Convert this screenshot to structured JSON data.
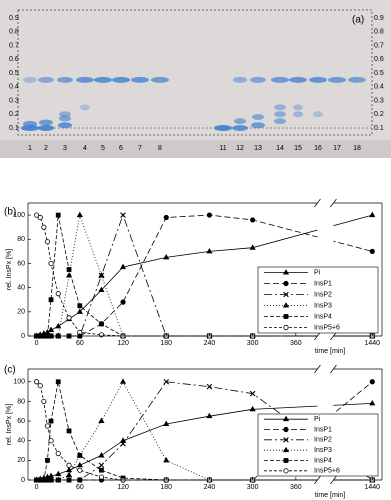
{
  "panel_a": {
    "label": "(a)",
    "rf_ticks": [
      "0.9",
      "0.8",
      "0.7",
      "0.6",
      "0.5",
      "0.4",
      "0.3",
      "0.2",
      "0.1"
    ],
    "lanes": [
      "1",
      "2",
      "3",
      "4",
      "5",
      "6",
      "7",
      "8",
      "11",
      "12",
      "13",
      "14",
      "15",
      "16",
      "17",
      "18"
    ]
  },
  "chart_data": [
    {
      "type": "line",
      "label": "(b)",
      "xlabel": "time [min]",
      "ylabel": "rel. InsPx [%]",
      "x": [
        0,
        5,
        10,
        15,
        20,
        30,
        45,
        60,
        90,
        120,
        180,
        240,
        300,
        1440
      ],
      "xlim": [
        -12,
        1450
      ],
      "xbreak": [
        390,
        1400
      ],
      "xticks": [
        0,
        60,
        120,
        180,
        240,
        300,
        360,
        1440
      ],
      "ylim": [
        0,
        110
      ],
      "yticks": [
        0,
        20,
        40,
        60,
        80,
        100
      ],
      "legend": "lower right",
      "series": [
        {
          "name": "Pi",
          "color": "#000000",
          "dash": "none",
          "marker": "triangle",
          "values": [
            0,
            1,
            2,
            3,
            5,
            8,
            14,
            20,
            38,
            57,
            65,
            70,
            73,
            100
          ]
        },
        {
          "name": "InsP1",
          "color": "#000000",
          "dash": "6,3",
          "marker": "circle",
          "values": [
            0,
            0,
            0,
            0,
            0,
            0,
            0,
            0,
            10,
            28,
            98,
            100,
            96,
            70
          ]
        },
        {
          "name": "InsP2",
          "color": "#000000",
          "dash": "8,3,2,3",
          "marker": "cross",
          "values": [
            0,
            0,
            0,
            0,
            0,
            0,
            0,
            0,
            50,
            100,
            0,
            0,
            0,
            0
          ]
        },
        {
          "name": "InsP3",
          "color": "#000000",
          "dash": "1,2",
          "marker": "triangle",
          "values": [
            0,
            0,
            0,
            0,
            0,
            0,
            50,
            100,
            50,
            0,
            0,
            0,
            0,
            0
          ]
        },
        {
          "name": "InsP4",
          "color": "#000000",
          "dash": "4,2",
          "marker": "square",
          "values": [
            0,
            0,
            0,
            0,
            30,
            100,
            55,
            25,
            10,
            0,
            0,
            0,
            0,
            0
          ]
        },
        {
          "name": "InsP5+6",
          "color": "#000000",
          "dash": "3,2",
          "marker": "open-circle",
          "values": [
            100,
            98,
            90,
            78,
            60,
            35,
            15,
            3,
            1,
            0,
            0,
            0,
            0,
            0
          ]
        }
      ]
    },
    {
      "type": "line",
      "label": "(c)",
      "xlabel": "time [min]",
      "ylabel": "rel. InsPx [%]",
      "x": [
        0,
        5,
        10,
        15,
        20,
        30,
        45,
        60,
        90,
        120,
        180,
        240,
        300,
        1440
      ],
      "xlim": [
        -12,
        1450
      ],
      "xbreak": [
        390,
        1400
      ],
      "xticks": [
        0,
        60,
        120,
        180,
        240,
        300,
        360,
        1440
      ],
      "ylim": [
        0,
        113
      ],
      "yticks": [
        0,
        20,
        40,
        60,
        80,
        100
      ],
      "legend": "lower right",
      "series": [
        {
          "name": "Pi",
          "color": "#000000",
          "dash": "none",
          "marker": "triangle",
          "values": [
            0,
            1,
            2,
            3,
            4,
            6,
            10,
            15,
            25,
            40,
            57,
            65,
            72,
            78
          ]
        },
        {
          "name": "InsP1",
          "color": "#000000",
          "dash": "6,3",
          "marker": "circle",
          "values": [
            0,
            0,
            0,
            0,
            0,
            0,
            0,
            0,
            0,
            0,
            0,
            0,
            0,
            100
          ]
        },
        {
          "name": "InsP2",
          "color": "#000000",
          "dash": "8,3,2,3",
          "marker": "cross",
          "values": [
            0,
            0,
            0,
            0,
            0,
            0,
            0,
            0,
            15,
            37,
            100,
            95,
            88,
            0
          ]
        },
        {
          "name": "InsP3",
          "color": "#000000",
          "dash": "1,2",
          "marker": "triangle",
          "values": [
            0,
            0,
            0,
            0,
            0,
            0,
            5,
            25,
            60,
            100,
            20,
            0,
            0,
            0
          ]
        },
        {
          "name": "InsP4",
          "color": "#000000",
          "dash": "4,2",
          "marker": "square",
          "values": [
            0,
            0,
            0,
            20,
            60,
            100,
            50,
            25,
            10,
            2,
            0,
            0,
            0,
            0
          ]
        },
        {
          "name": "InsP5+6",
          "color": "#000000",
          "dash": "3,2",
          "marker": "open-circle",
          "values": [
            100,
            96,
            80,
            55,
            40,
            27,
            15,
            10,
            3,
            0,
            0,
            0,
            0,
            0
          ]
        }
      ]
    }
  ]
}
